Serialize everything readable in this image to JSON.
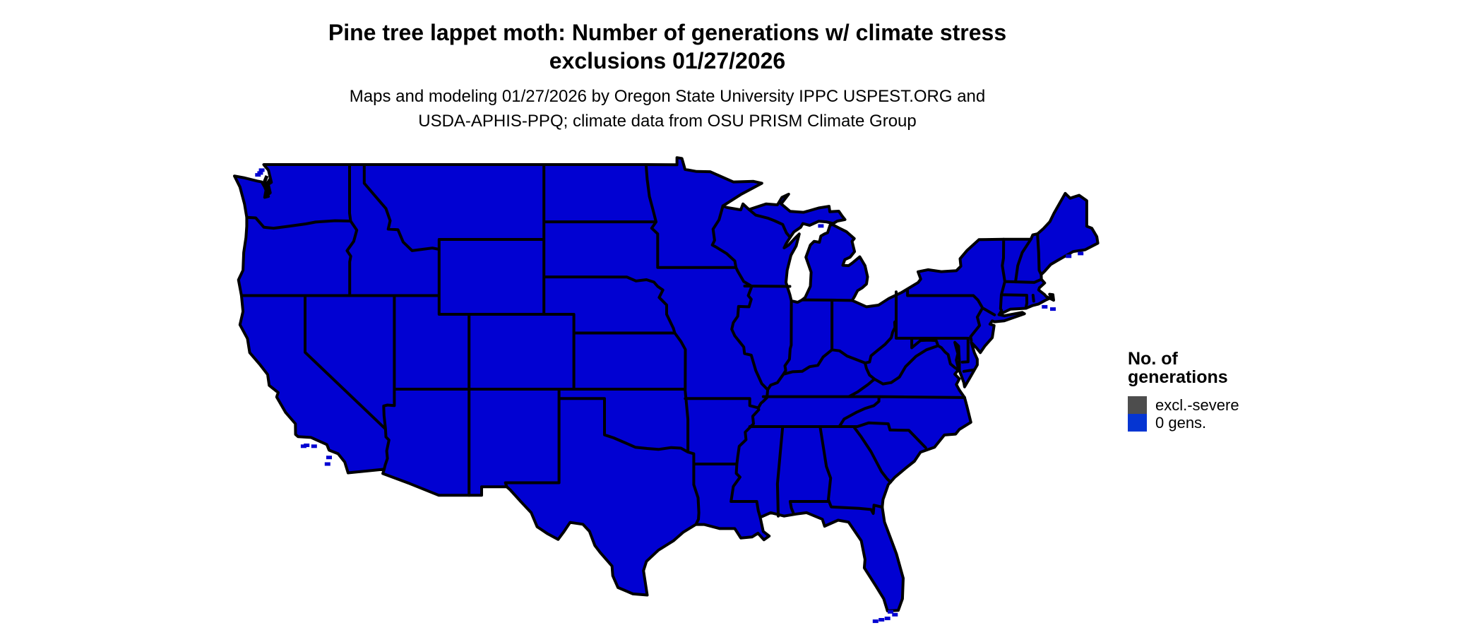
{
  "title": {
    "line1": "Pine tree lappet moth: Number of generations w/ climate stress",
    "line2": "exclusions 01/27/2026"
  },
  "subtitle": {
    "line1": "Maps and modeling 01/27/2026 by Oregon State University IPPC USPEST.ORG and",
    "line2": "USDA-APHIS-PPQ; climate data from OSU PRISM Climate Group"
  },
  "legend": {
    "title_line1": "No. of",
    "title_line2": "generations",
    "items": [
      {
        "label": "excl.-severe",
        "color": "#4D4D4D"
      },
      {
        "label": "0 gens.",
        "color": "#0535D2"
      }
    ]
  },
  "map": {
    "region": "Contiguous United States",
    "fill_color": "#0101D2",
    "border_color": "#000000",
    "background_color": "#FFFFFF"
  },
  "chart_data": {
    "type": "choropleth-map",
    "title": "Pine tree lappet moth: Number of generations w/ climate stress exclusions 01/27/2026",
    "legend_title": "No. of generations",
    "classes": [
      {
        "label": "excl.-severe",
        "color": "#4D4D4D"
      },
      {
        "label": "0 gens.",
        "color": "#0535D2"
      }
    ],
    "depicted_value": "0 gens. (entire contiguous US shown in blue)"
  }
}
